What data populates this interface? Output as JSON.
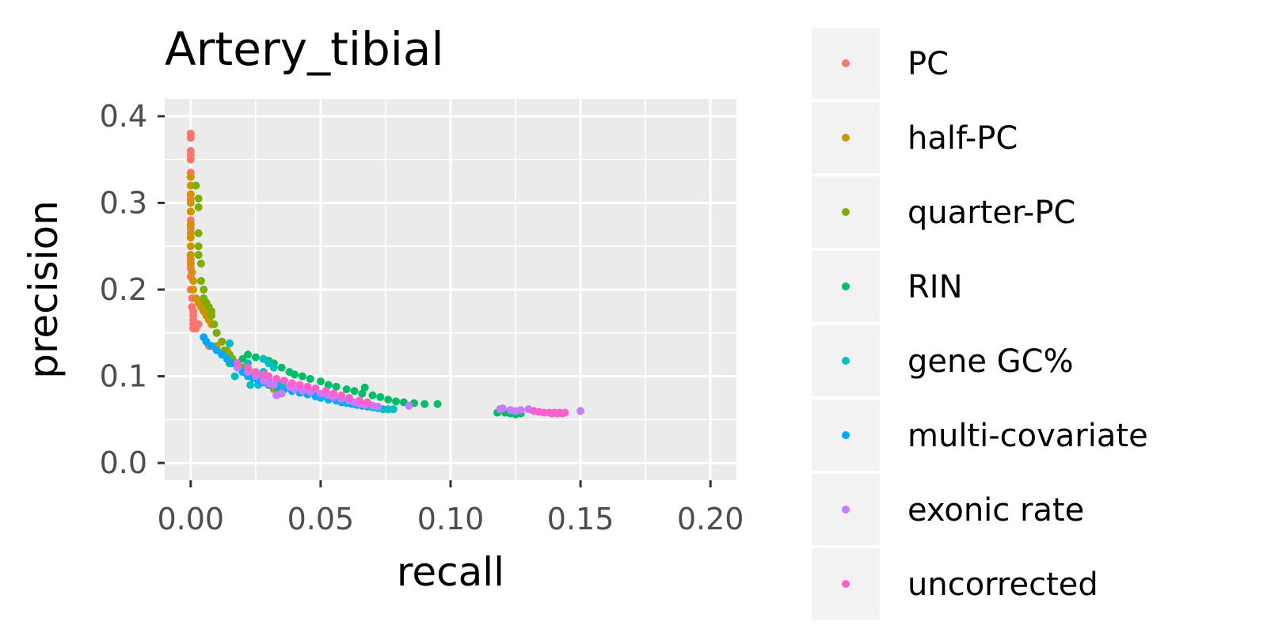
{
  "chart_data": {
    "type": "scatter",
    "title": "Artery_tibial",
    "xlabel": "recall",
    "ylabel": "precision",
    "xlim": [
      -0.01,
      0.21
    ],
    "ylim": [
      -0.02,
      0.42
    ],
    "x_ticks": [
      {
        "value": 0.0,
        "label": "0.00"
      },
      {
        "value": 0.05,
        "label": "0.05"
      },
      {
        "value": 0.1,
        "label": "0.10"
      },
      {
        "value": 0.15,
        "label": "0.15"
      },
      {
        "value": 0.2,
        "label": "0.20"
      }
    ],
    "y_ticks": [
      {
        "value": 0.0,
        "label": "0.0"
      },
      {
        "value": 0.1,
        "label": "0.1"
      },
      {
        "value": 0.2,
        "label": "0.2"
      },
      {
        "value": 0.3,
        "label": "0.3"
      },
      {
        "value": 0.4,
        "label": "0.4"
      }
    ],
    "grid": true,
    "legend_position": "right",
    "series": [
      {
        "name": "PC",
        "color": "#F8766D",
        "points": [
          [
            0.0,
            0.38
          ],
          [
            0.0,
            0.375
          ],
          [
            0.0,
            0.36
          ],
          [
            0.0,
            0.355
          ],
          [
            0.0,
            0.35
          ],
          [
            0.0,
            0.335
          ],
          [
            0.0,
            0.33
          ],
          [
            0.0,
            0.31
          ],
          [
            0.0,
            0.305
          ],
          [
            0.0,
            0.29
          ],
          [
            0.0,
            0.28
          ],
          [
            0.0,
            0.27
          ],
          [
            0.0,
            0.26
          ],
          [
            0.0,
            0.24
          ],
          [
            0.0,
            0.235
          ],
          [
            0.0,
            0.23
          ],
          [
            0.0,
            0.225
          ],
          [
            0.0,
            0.215
          ],
          [
            0.0,
            0.2
          ],
          [
            0.0005,
            0.19
          ],
          [
            0.0005,
            0.18
          ],
          [
            0.001,
            0.175
          ],
          [
            0.001,
            0.17
          ],
          [
            0.001,
            0.165
          ],
          [
            0.001,
            0.16
          ],
          [
            0.001,
            0.155
          ],
          [
            0.002,
            0.155
          ],
          [
            0.003,
            0.16
          ],
          [
            0.005,
            0.145
          ],
          [
            0.006,
            0.14
          ],
          [
            0.007,
            0.135
          ]
        ]
      },
      {
        "name": "half-PC",
        "color": "#CD9600",
        "points": [
          [
            0.0,
            0.33
          ],
          [
            0.0,
            0.32
          ],
          [
            0.0,
            0.31
          ],
          [
            0.0,
            0.3
          ],
          [
            0.0,
            0.29
          ],
          [
            0.0,
            0.275
          ],
          [
            0.0,
            0.265
          ],
          [
            0.0,
            0.26
          ],
          [
            0.0,
            0.25
          ],
          [
            0.0,
            0.24
          ],
          [
            0.0,
            0.23
          ],
          [
            0.0005,
            0.22
          ],
          [
            0.001,
            0.21
          ],
          [
            0.001,
            0.2
          ],
          [
            0.002,
            0.19
          ],
          [
            0.003,
            0.185
          ],
          [
            0.004,
            0.18
          ],
          [
            0.005,
            0.175
          ],
          [
            0.006,
            0.17
          ],
          [
            0.007,
            0.165
          ],
          [
            0.008,
            0.16
          ],
          [
            0.01,
            0.15
          ],
          [
            0.012,
            0.14
          ],
          [
            0.014,
            0.13
          ],
          [
            0.016,
            0.12
          ],
          [
            0.018,
            0.115
          ],
          [
            0.02,
            0.11
          ],
          [
            0.023,
            0.105
          ],
          [
            0.026,
            0.1
          ],
          [
            0.028,
            0.095
          ],
          [
            0.03,
            0.09
          ],
          [
            0.032,
            0.085
          ],
          [
            0.034,
            0.082
          ],
          [
            0.01,
            0.135
          ],
          [
            0.006,
            0.14
          ]
        ]
      },
      {
        "name": "quarter-PC",
        "color": "#7CAE00",
        "points": [
          [
            0.002,
            0.32
          ],
          [
            0.003,
            0.305
          ],
          [
            0.003,
            0.295
          ],
          [
            0.003,
            0.265
          ],
          [
            0.003,
            0.25
          ],
          [
            0.003,
            0.24
          ],
          [
            0.004,
            0.23
          ],
          [
            0.004,
            0.21
          ],
          [
            0.005,
            0.2
          ],
          [
            0.005,
            0.19
          ],
          [
            0.006,
            0.185
          ],
          [
            0.007,
            0.18
          ],
          [
            0.008,
            0.175
          ],
          [
            0.008,
            0.17
          ],
          [
            0.009,
            0.16
          ],
          [
            0.01,
            0.15
          ],
          [
            0.012,
            0.14
          ],
          [
            0.013,
            0.13
          ],
          [
            0.015,
            0.125
          ],
          [
            0.016,
            0.12
          ],
          [
            0.018,
            0.115
          ],
          [
            0.02,
            0.11
          ],
          [
            0.022,
            0.105
          ],
          [
            0.025,
            0.1
          ],
          [
            0.027,
            0.097
          ],
          [
            0.029,
            0.093
          ],
          [
            0.031,
            0.09
          ],
          [
            0.033,
            0.085
          ],
          [
            0.035,
            0.082
          ],
          [
            0.034,
            0.09
          ]
        ]
      },
      {
        "name": "RIN",
        "color": "#00BE67",
        "points": [
          [
            0.015,
            0.115
          ],
          [
            0.02,
            0.12
          ],
          [
            0.022,
            0.125
          ],
          [
            0.025,
            0.122
          ],
          [
            0.028,
            0.12
          ],
          [
            0.03,
            0.118
          ],
          [
            0.032,
            0.115
          ],
          [
            0.035,
            0.11
          ],
          [
            0.038,
            0.105
          ],
          [
            0.04,
            0.102
          ],
          [
            0.043,
            0.1
          ],
          [
            0.046,
            0.097
          ],
          [
            0.05,
            0.094
          ],
          [
            0.053,
            0.09
          ],
          [
            0.056,
            0.088
          ],
          [
            0.06,
            0.085
          ],
          [
            0.063,
            0.083
          ],
          [
            0.066,
            0.08
          ],
          [
            0.067,
            0.087
          ],
          [
            0.07,
            0.078
          ],
          [
            0.073,
            0.076
          ],
          [
            0.076,
            0.073
          ],
          [
            0.079,
            0.071
          ],
          [
            0.082,
            0.07
          ],
          [
            0.086,
            0.069
          ],
          [
            0.09,
            0.068
          ],
          [
            0.095,
            0.068
          ],
          [
            0.118,
            0.058
          ],
          [
            0.121,
            0.058
          ],
          [
            0.123,
            0.057
          ],
          [
            0.125,
            0.056
          ],
          [
            0.127,
            0.057
          ]
        ]
      },
      {
        "name": "gene GC%",
        "color": "#00BFC4",
        "points": [
          [
            0.015,
            0.138
          ],
          [
            0.017,
            0.1
          ],
          [
            0.02,
            0.105
          ],
          [
            0.022,
            0.115
          ],
          [
            0.023,
            0.09
          ],
          [
            0.025,
            0.1
          ],
          [
            0.026,
            0.09
          ],
          [
            0.028,
            0.105
          ],
          [
            0.03,
            0.095
          ],
          [
            0.032,
            0.11
          ],
          [
            0.034,
            0.09
          ],
          [
            0.036,
            0.088
          ],
          [
            0.04,
            0.085
          ],
          [
            0.043,
            0.082
          ],
          [
            0.045,
            0.08
          ],
          [
            0.048,
            0.077
          ],
          [
            0.05,
            0.075
          ],
          [
            0.053,
            0.073
          ],
          [
            0.056,
            0.072
          ],
          [
            0.06,
            0.07
          ],
          [
            0.063,
            0.068
          ],
          [
            0.066,
            0.066
          ],
          [
            0.068,
            0.065
          ],
          [
            0.07,
            0.064
          ],
          [
            0.072,
            0.063
          ],
          [
            0.074,
            0.062
          ],
          [
            0.076,
            0.062
          ],
          [
            0.078,
            0.062
          ],
          [
            0.028,
            0.12
          ],
          [
            0.03,
            0.115
          ]
        ]
      },
      {
        "name": "multi-covariate",
        "color": "#00A9FF",
        "points": [
          [
            0.005,
            0.145
          ],
          [
            0.006,
            0.14
          ],
          [
            0.008,
            0.135
          ],
          [
            0.01,
            0.13
          ],
          [
            0.012,
            0.125
          ],
          [
            0.014,
            0.12
          ],
          [
            0.016,
            0.115
          ],
          [
            0.018,
            0.11
          ],
          [
            0.02,
            0.105
          ],
          [
            0.022,
            0.1
          ],
          [
            0.024,
            0.098
          ],
          [
            0.026,
            0.095
          ],
          [
            0.028,
            0.093
          ],
          [
            0.03,
            0.09
          ],
          [
            0.033,
            0.088
          ],
          [
            0.036,
            0.085
          ],
          [
            0.039,
            0.083
          ],
          [
            0.042,
            0.081
          ],
          [
            0.045,
            0.079
          ],
          [
            0.048,
            0.077
          ],
          [
            0.05,
            0.076
          ],
          [
            0.053,
            0.074
          ],
          [
            0.056,
            0.072
          ],
          [
            0.058,
            0.07
          ],
          [
            0.06,
            0.069
          ],
          [
            0.062,
            0.068
          ],
          [
            0.064,
            0.067
          ],
          [
            0.066,
            0.066
          ]
        ]
      },
      {
        "name": "exonic rate",
        "color": "#C77CFF",
        "points": [
          [
            0.018,
            0.11
          ],
          [
            0.022,
            0.105
          ],
          [
            0.025,
            0.1
          ],
          [
            0.028,
            0.095
          ],
          [
            0.03,
            0.092
          ],
          [
            0.032,
            0.09
          ],
          [
            0.033,
            0.078
          ],
          [
            0.035,
            0.08
          ],
          [
            0.038,
            0.088
          ],
          [
            0.04,
            0.085
          ],
          [
            0.043,
            0.083
          ],
          [
            0.046,
            0.082
          ],
          [
            0.05,
            0.08
          ],
          [
            0.053,
            0.078
          ],
          [
            0.055,
            0.076
          ],
          [
            0.058,
            0.074
          ],
          [
            0.061,
            0.072
          ],
          [
            0.063,
            0.07
          ],
          [
            0.065,
            0.068
          ],
          [
            0.067,
            0.067
          ],
          [
            0.07,
            0.066
          ],
          [
            0.072,
            0.065
          ],
          [
            0.084,
            0.066
          ],
          [
            0.119,
            0.062
          ],
          [
            0.12,
            0.063
          ],
          [
            0.123,
            0.061
          ],
          [
            0.125,
            0.06
          ],
          [
            0.127,
            0.061
          ],
          [
            0.13,
            0.062
          ],
          [
            0.15,
            0.06
          ]
        ]
      },
      {
        "name": "uncorrected",
        "color": "#FF61CC",
        "points": [
          [
            0.018,
            0.115
          ],
          [
            0.022,
            0.11
          ],
          [
            0.025,
            0.105
          ],
          [
            0.028,
            0.102
          ],
          [
            0.03,
            0.1
          ],
          [
            0.033,
            0.097
          ],
          [
            0.036,
            0.095
          ],
          [
            0.039,
            0.092
          ],
          [
            0.042,
            0.09
          ],
          [
            0.045,
            0.088
          ],
          [
            0.048,
            0.086
          ],
          [
            0.052,
            0.083
          ],
          [
            0.055,
            0.08
          ],
          [
            0.058,
            0.078
          ],
          [
            0.061,
            0.075
          ],
          [
            0.065,
            0.072
          ],
          [
            0.068,
            0.07
          ],
          [
            0.132,
            0.06
          ],
          [
            0.134,
            0.059
          ],
          [
            0.136,
            0.058
          ],
          [
            0.138,
            0.058
          ],
          [
            0.139,
            0.057
          ],
          [
            0.14,
            0.058
          ],
          [
            0.141,
            0.057
          ],
          [
            0.142,
            0.058
          ],
          [
            0.143,
            0.057
          ],
          [
            0.144,
            0.058
          ]
        ]
      }
    ]
  }
}
